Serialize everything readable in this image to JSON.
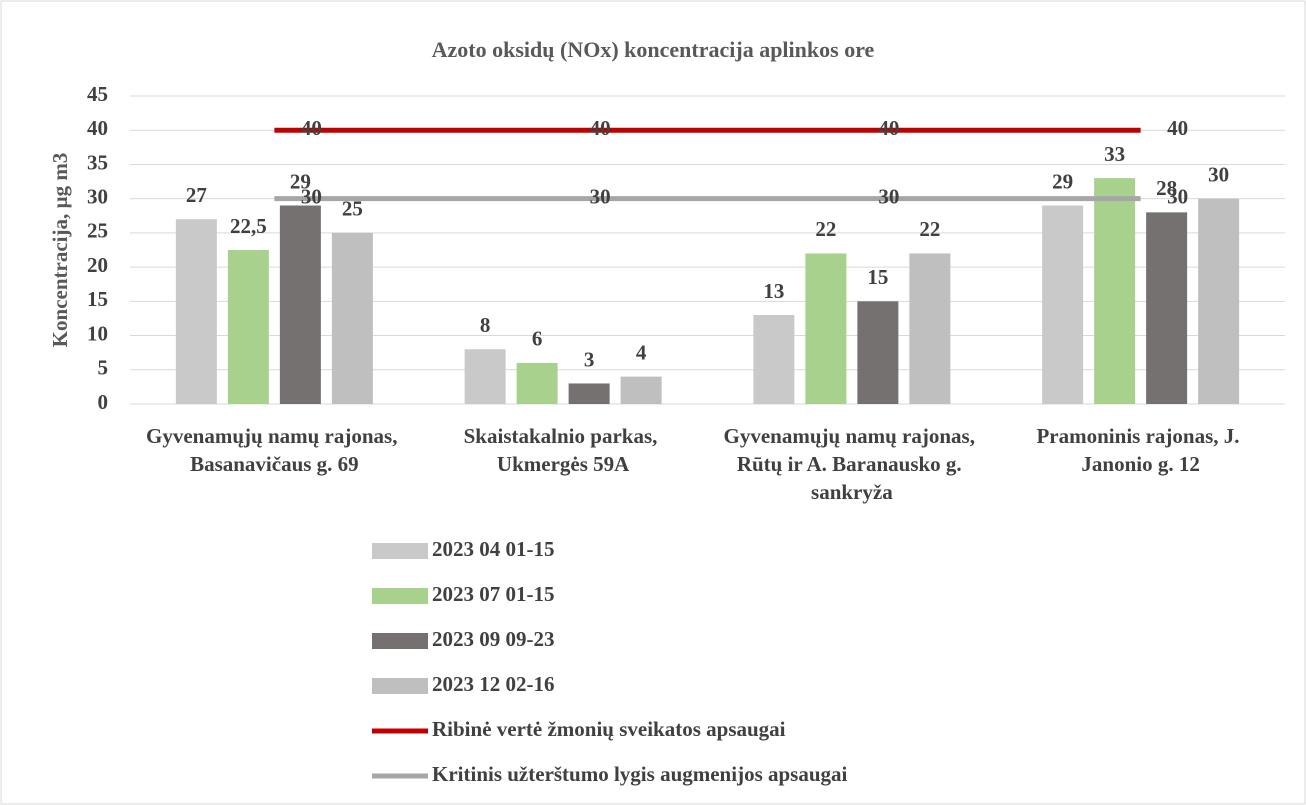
{
  "chart_data": {
    "type": "bar",
    "title": "Azoto oksidų (NOx) koncentracija aplinkos ore",
    "y_label": "Koncentracija, µg m3",
    "categories": [
      "Gyvenamųjų namų rajonas, Basanavičaus g. 69",
      "Skaistakalnio parkas, Ukmergės 59A",
      "Gyvenamųjų namų rajonas, Rūtų ir A. Baranausko g. sankryža",
      "Pramoninis rajonas, J. Janonio g. 12"
    ],
    "series": [
      {
        "name": "2023 04 01-15",
        "type": "bar",
        "color": "#c9c9c9",
        "values": [
          27,
          8,
          13,
          29
        ]
      },
      {
        "name": "2023 07 01-15",
        "type": "bar",
        "color": "#a9d18e",
        "values": [
          22.5,
          6,
          22,
          33
        ],
        "value_labels": [
          "22,5",
          "6",
          "22",
          "33"
        ]
      },
      {
        "name": "2023 09 09-23",
        "type": "bar",
        "color": "#767171",
        "values": [
          29,
          3,
          15,
          28
        ]
      },
      {
        "name": "2023 12 02-16",
        "type": "bar",
        "color": "#bfbfbf",
        "values": [
          25,
          4,
          22,
          30
        ]
      },
      {
        "name": "Ribinė vertė žmonių sveikatos apsaugai",
        "type": "line",
        "color": "#c00000",
        "values": [
          40,
          40,
          40,
          40
        ]
      },
      {
        "name": "Kritinis užterštumo lygis augmenijos apsaugai",
        "type": "line",
        "color": "#a6a6a6",
        "values": [
          30,
          30,
          30,
          30
        ]
      }
    ],
    "ylim": [
      0,
      45
    ],
    "yticks": [
      0,
      5,
      10,
      15,
      20,
      25,
      30,
      35,
      40,
      45
    ],
    "grid": true,
    "legend": "bottom"
  }
}
